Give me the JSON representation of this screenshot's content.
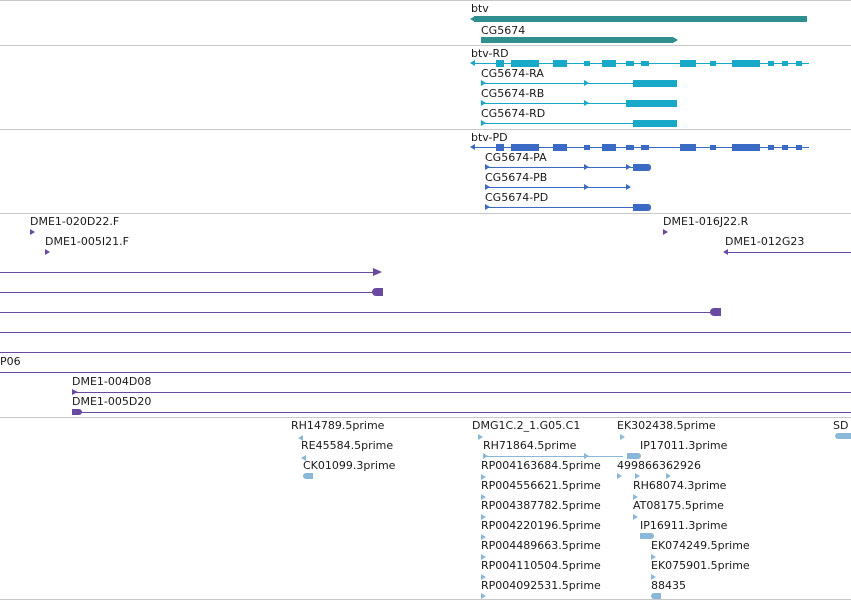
{
  "colors": {
    "gene": "#2f8f8f",
    "transcript": "#18a8c8",
    "protein": "#3a6ac4",
    "bac": "#6a4aa0",
    "est": "#8ab8d8",
    "divider": "#c8c8c8"
  },
  "tracks": {
    "genes": {
      "labels": [
        "btv",
        "CG5674"
      ]
    },
    "transcripts": {
      "labels": [
        "btv-RD",
        "CG5674-RA",
        "CG5674-RB",
        "CG5674-RD"
      ]
    },
    "proteins": {
      "labels": [
        "btv-PD",
        "CG5674-PA",
        "CG5674-PB",
        "CG5674-PD"
      ]
    },
    "bac_ends": {
      "labels": [
        "DME1-020D22.F",
        "DME1-005I21.F",
        "DME1-016J22.R",
        "DME1-012G23"
      ]
    },
    "bac_clones": {
      "labels": [
        "P06",
        "DME1-004D08",
        "DME1-005D20"
      ]
    },
    "ests": {
      "labels": [
        "RH14789.5prime",
        "RE45584.5prime",
        "CK01099.3prime",
        "DMG1C.2_1.G05.C1",
        "RH71864.5prime",
        "RP004163684.5prime",
        "RP004556621.5prime",
        "RP004387782.5prime",
        "RP004220196.5prime",
        "RP004489663.5prime",
        "RP004110504.5prime",
        "RP004092531.5prime",
        "EK302438.5prime",
        "IP17011.3prime",
        "499866362926",
        "RH68074.3prime",
        "AT08175.5prime",
        "IP16911.3prime",
        "EK074249.5prime",
        "EK075901.5prime",
        "88435",
        "SD"
      ]
    }
  }
}
